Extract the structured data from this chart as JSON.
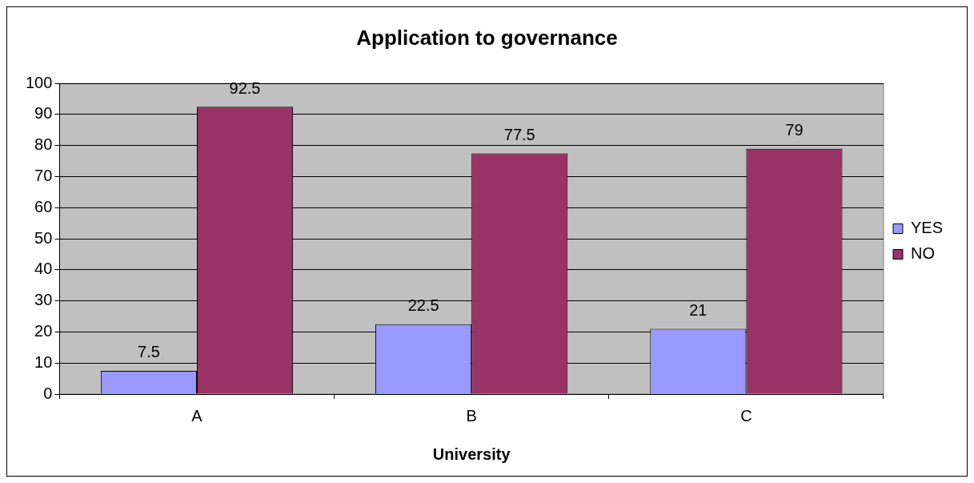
{
  "chart_data": {
    "type": "bar",
    "title": "Application to governance",
    "xlabel": "University",
    "categories": [
      "A",
      "B",
      "C"
    ],
    "series": [
      {
        "name": "YES",
        "color": "#9999ff",
        "values": [
          7.5,
          22.5,
          21
        ]
      },
      {
        "name": "NO",
        "color": "#993366",
        "values": [
          92.5,
          77.5,
          79
        ]
      }
    ],
    "ylim": [
      0,
      100
    ],
    "yticks": [
      0,
      10,
      20,
      30,
      40,
      50,
      60,
      70,
      80,
      90,
      100
    ],
    "grid": "y",
    "legend": "right",
    "data_labels": true
  }
}
